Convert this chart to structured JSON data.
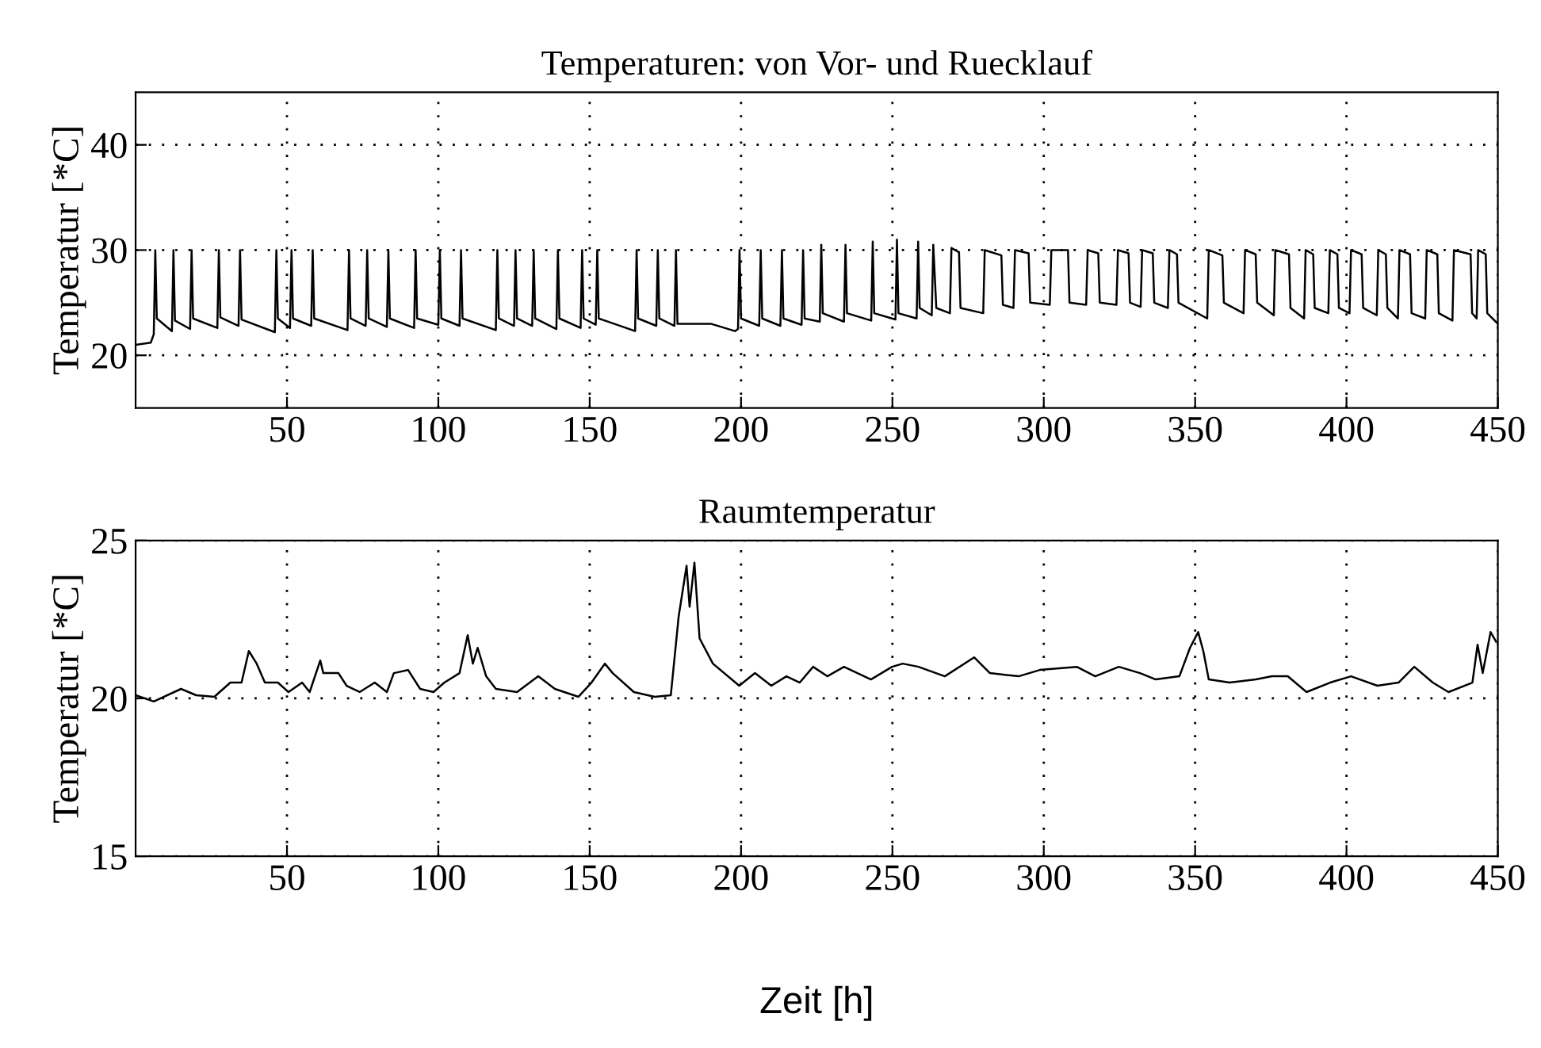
{
  "chart_data": [
    {
      "type": "line",
      "title": "Temperaturen: von Vor- und Ruecklauf",
      "ylabel": "Temperatur [*C]",
      "xlim": [
        0,
        450
      ],
      "ylim": [
        15,
        45
      ],
      "xticks": [
        50,
        100,
        150,
        200,
        250,
        300,
        350,
        400,
        450
      ],
      "yticks": [
        20,
        30,
        40
      ],
      "grid": true,
      "line_style": "solid",
      "series": [
        {
          "color": "#000000",
          "x": [
            0,
            5,
            6,
            6.5,
            7,
            12,
            12.5,
            13,
            18,
            18.5,
            19,
            27,
            27.5,
            28,
            34,
            34.5,
            35,
            46,
            46.5,
            47,
            51,
            51.5,
            52,
            58,
            58.5,
            59,
            70,
            70.5,
            71,
            76,
            76.5,
            77,
            83,
            83.5,
            84,
            92,
            92.5,
            93,
            100,
            100.5,
            101,
            107,
            107.5,
            108,
            119,
            119.5,
            120,
            125,
            125.5,
            126,
            131,
            131.5,
            132,
            139,
            139.5,
            140,
            147,
            147.5,
            148,
            152,
            152.5,
            153,
            165,
            165.5,
            166,
            172,
            172.5,
            173,
            178,
            178.5,
            179,
            190,
            198,
            199,
            199.5,
            200,
            206,
            206.5,
            207,
            213,
            213.5,
            214,
            220,
            220.5,
            221,
            226,
            226.5,
            227,
            234,
            234.5,
            235,
            243,
            243.5,
            244,
            251,
            251.5,
            252,
            258,
            258.5,
            259,
            263,
            263.5,
            264.5,
            269,
            269.5,
            272,
            272.5,
            280,
            280.5,
            286,
            286.5,
            290,
            290.5,
            295,
            295.5,
            302,
            302.5,
            308,
            308.5,
            314,
            314.5,
            318,
            318.5,
            324,
            324.5,
            328,
            328.5,
            332,
            332.5,
            336,
            336.5,
            341,
            341.5,
            344,
            344.5,
            354,
            354.5,
            359,
            359.5,
            366,
            366.5,
            370,
            370.5,
            376,
            376.5,
            381,
            381.5,
            386,
            386.5,
            389,
            389.5,
            394,
            394.5,
            397,
            397.5,
            401,
            401.5,
            405,
            405.5,
            410,
            410.5,
            413,
            413.5,
            417,
            417.5,
            421,
            421.5,
            426,
            426.5,
            430,
            430.5,
            435,
            435.5,
            441,
            441.5,
            443,
            443.5,
            446,
            446.5,
            450
          ],
          "values": [
            21,
            21.2,
            22,
            30,
            23.5,
            22.3,
            30,
            23.3,
            22.5,
            30,
            23.5,
            22.6,
            30,
            23.6,
            22.8,
            30,
            23.4,
            22.2,
            30,
            23.5,
            22.6,
            30,
            23.5,
            22.8,
            30,
            23.5,
            22.4,
            30,
            23.5,
            22.8,
            30,
            23.5,
            22.7,
            30,
            23.5,
            22.6,
            30,
            23.5,
            22.9,
            30,
            23.5,
            22.8,
            30,
            23.5,
            22.4,
            30,
            23.5,
            22.8,
            30,
            23.5,
            22.8,
            30,
            23.5,
            22.5,
            30,
            23.5,
            22.6,
            30,
            23.5,
            22.9,
            30,
            23.5,
            22.3,
            30,
            23.5,
            22.8,
            30,
            23.5,
            22.8,
            30,
            23,
            23,
            22.3,
            22.5,
            30,
            23.5,
            22.8,
            30,
            23.5,
            22.8,
            30,
            23.5,
            22.9,
            30,
            23.5,
            23.2,
            30.5,
            24,
            23.2,
            30.5,
            24,
            23.3,
            30.8,
            24,
            23.4,
            31,
            24,
            23.5,
            30.8,
            24.5,
            23.8,
            30.5,
            24.5,
            24,
            30.2,
            29.8,
            24.5,
            24,
            30,
            29.5,
            24.8,
            24.5,
            30,
            29.7,
            25,
            24.8,
            30,
            30,
            25,
            24.8,
            30,
            29.7,
            25,
            24.8,
            30,
            29.7,
            25,
            24.6,
            30,
            29.7,
            25,
            24.5,
            30,
            29.6,
            25,
            23.5,
            30,
            29.5,
            25,
            24,
            30,
            29.6,
            25,
            23.8,
            30,
            29.6,
            24.5,
            23.5,
            30,
            29.6,
            24.5,
            24,
            30,
            29.6,
            24.5,
            24,
            30,
            29.6,
            24.5,
            23.8,
            30,
            29.6,
            24.5,
            23.5,
            30,
            29.6,
            24,
            23.5,
            30,
            29.6,
            24,
            23.3,
            30,
            29.6,
            24,
            23.5,
            30,
            29.6,
            24,
            23
          ]
        }
      ]
    },
    {
      "type": "line",
      "title": "Raumtemperatur",
      "ylabel": "Temperatur [*C]",
      "xlabel": "Zeit [h]",
      "xlim": [
        0,
        450
      ],
      "ylim": [
        15,
        25
      ],
      "xticks": [
        50,
        100,
        150,
        200,
        250,
        300,
        350,
        400,
        450
      ],
      "yticks": [
        15,
        20,
        25
      ],
      "grid": true,
      "line_style": "solid",
      "series": [
        {
          "color": "#000000",
          "x": [
            0,
            6,
            15,
            20,
            26,
            31.3,
            35,
            37.4,
            40,
            42.7,
            47,
            50.5,
            55,
            57.5,
            61,
            62,
            67,
            69.7,
            74,
            79,
            83,
            85.3,
            90,
            94,
            98.4,
            102,
            107,
            109.7,
            111.4,
            113,
            115.8,
            119,
            126,
            133,
            138.5,
            146.3,
            150.6,
            155,
            157.6,
            164.6,
            171.5,
            176.8,
            179.4,
            182,
            183,
            184.6,
            186.3,
            190.7,
            199.4,
            204.6,
            210,
            215,
            219.4,
            223.8,
            228.5,
            234,
            242.9,
            249.9,
            253.4,
            258.6,
            267.3,
            277,
            282.2,
            291.7,
            298.7,
            310.9,
            317,
            324.8,
            331.8,
            337,
            344.8,
            348.3,
            351,
            352.7,
            354.5,
            361.4,
            370.1,
            375.4,
            380.6,
            386.8,
            394.6,
            401.5,
            410.2,
            417.2,
            422.4,
            428.5,
            433.7,
            441.6,
            443.3,
            445,
            447.6,
            449.4
          ],
          "values": [
            20.1,
            19.9,
            20.3,
            20.1,
            20.05,
            20.5,
            20.5,
            21.5,
            21.1,
            20.5,
            20.5,
            20.2,
            20.5,
            20.2,
            21.2,
            20.8,
            20.8,
            20.4,
            20.2,
            20.5,
            20.2,
            20.8,
            20.9,
            20.3,
            20.2,
            20.5,
            20.8,
            22,
            21.1,
            21.6,
            20.7,
            20.3,
            20.2,
            20.7,
            20.3,
            20.05,
            20.5,
            21.1,
            20.8,
            20.2,
            20.05,
            20.1,
            22.6,
            24.2,
            22.9,
            24.3,
            21.9,
            21.1,
            20.4,
            20.8,
            20.4,
            20.7,
            20.5,
            21,
            20.7,
            21,
            20.6,
            21,
            21.1,
            21,
            20.7,
            21.3,
            20.8,
            20.7,
            20.9,
            21,
            20.7,
            21,
            20.8,
            20.6,
            20.7,
            21.6,
            22.1,
            21.5,
            20.6,
            20.5,
            20.6,
            20.7,
            20.7,
            20.2,
            20.5,
            20.7,
            20.4,
            20.5,
            21,
            20.5,
            20.2,
            20.5,
            21.7,
            20.8,
            22.1,
            21.8
          ]
        }
      ]
    }
  ]
}
